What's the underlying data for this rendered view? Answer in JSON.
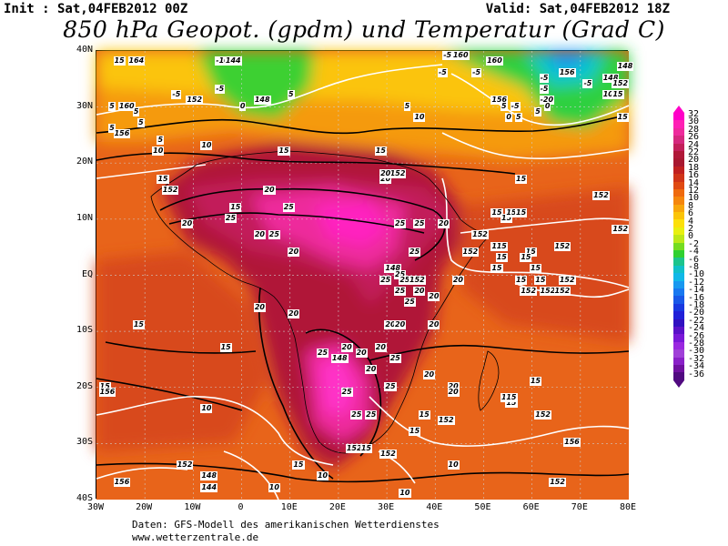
{
  "header": {
    "init": "Init : Sat,04FEB2012 00Z",
    "valid": "Valid: Sat,04FEB2012 18Z",
    "title": "850 hPa Geopot. (gpdm) und Temperatur (Grad C)"
  },
  "axes": {
    "lat_labels": [
      "40N",
      "30N",
      "20N",
      "10N",
      "EQ",
      "10S",
      "20S",
      "30S",
      "40S"
    ],
    "lon_labels": [
      "30W",
      "20W",
      "10W",
      "0",
      "10E",
      "20E",
      "30E",
      "40E",
      "50E",
      "60E",
      "70E",
      "80E"
    ]
  },
  "colorbar": {
    "values": [
      "32",
      "30",
      "28",
      "26",
      "24",
      "22",
      "20",
      "18",
      "16",
      "14",
      "12",
      "10",
      "8",
      "6",
      "4",
      "2",
      "0",
      "-2",
      "-4",
      "-6",
      "-8",
      "-10",
      "-12",
      "-14",
      "-16",
      "-18",
      "-20",
      "-22",
      "-24",
      "-26",
      "-28",
      "-30",
      "-32",
      "-34",
      "-36"
    ],
    "colors": [
      "#ff00c8",
      "#ff20b4",
      "#ee2a9c",
      "#d5287e",
      "#c21f5a",
      "#b01838",
      "#a81830",
      "#c02020",
      "#d03418",
      "#e04a12",
      "#ef6a0e",
      "#f5860c",
      "#f8a60a",
      "#fbc408",
      "#fce00a",
      "#e8f010",
      "#bce818",
      "#74dc20",
      "#30d030",
      "#1cc48c",
      "#10c0c8",
      "#10b8e8",
      "#1898f0",
      "#1878f0",
      "#1858e8",
      "#1838e0",
      "#2020d8",
      "#3010c0",
      "#5a10c8",
      "#7a18d8",
      "#9a28e0",
      "#a040d8",
      "#8a20c8",
      "#7010a0",
      "#500a80"
    ]
  },
  "map_labels": [
    {
      "lat": 38,
      "lon": -22,
      "text": "164"
    },
    {
      "lat": 38,
      "lon": -25,
      "text": "15"
    },
    {
      "lat": 38,
      "lon": -4,
      "text": "-10"
    },
    {
      "lat": 38,
      "lon": -2,
      "text": "144"
    },
    {
      "lat": 33,
      "lon": -4,
      "text": "-5"
    },
    {
      "lat": 32,
      "lon": -13,
      "text": "-5"
    },
    {
      "lat": 31,
      "lon": -10,
      "text": "152"
    },
    {
      "lat": 30,
      "lon": -24,
      "text": "160"
    },
    {
      "lat": 30,
      "lon": -26,
      "text": "5"
    },
    {
      "lat": 29,
      "lon": -21,
      "text": "5"
    },
    {
      "lat": 27,
      "lon": -20,
      "text": "5"
    },
    {
      "lat": 26,
      "lon": -26,
      "text": "5"
    },
    {
      "lat": 25,
      "lon": -25,
      "text": "156"
    },
    {
      "lat": 24,
      "lon": -16,
      "text": "5"
    },
    {
      "lat": 22,
      "lon": -17,
      "text": "10"
    },
    {
      "lat": 23,
      "lon": -7,
      "text": "10"
    },
    {
      "lat": 30,
      "lon": 1,
      "text": "0"
    },
    {
      "lat": 31,
      "lon": 4,
      "text": "148"
    },
    {
      "lat": 32,
      "lon": 11,
      "text": "5"
    },
    {
      "lat": 30,
      "lon": 35,
      "text": "5"
    },
    {
      "lat": 28,
      "lon": 37,
      "text": "10"
    },
    {
      "lat": 22,
      "lon": 9,
      "text": "15"
    },
    {
      "lat": 22,
      "lon": 29,
      "text": "15"
    },
    {
      "lat": 39,
      "lon": 43,
      "text": "-5"
    },
    {
      "lat": 39,
      "lon": 45,
      "text": "160"
    },
    {
      "lat": 38,
      "lon": 52,
      "text": "160"
    },
    {
      "lat": 36,
      "lon": 42,
      "text": "-5"
    },
    {
      "lat": 36,
      "lon": 49,
      "text": "-5"
    },
    {
      "lat": 31,
      "lon": 53,
      "text": "156"
    },
    {
      "lat": 30,
      "lon": 55,
      "text": "5"
    },
    {
      "lat": 30,
      "lon": 57,
      "text": "-5"
    },
    {
      "lat": 28,
      "lon": 56,
      "text": "0"
    },
    {
      "lat": 28,
      "lon": 58,
      "text": "5"
    },
    {
      "lat": 36,
      "lon": 67,
      "text": "156"
    },
    {
      "lat": 35,
      "lon": 63,
      "text": "-5"
    },
    {
      "lat": 34,
      "lon": 72,
      "text": "-5"
    },
    {
      "lat": 35,
      "lon": 76,
      "text": "148"
    },
    {
      "lat": 37,
      "lon": 79,
      "text": "148"
    },
    {
      "lat": 33,
      "lon": 63,
      "text": "-5"
    },
    {
      "lat": 31,
      "lon": 63,
      "text": "-20"
    },
    {
      "lat": 30,
      "lon": 64,
      "text": "0"
    },
    {
      "lat": 29,
      "lon": 62,
      "text": "5"
    },
    {
      "lat": 32,
      "lon": 76,
      "text": "10"
    },
    {
      "lat": 32,
      "lon": 78,
      "text": "15"
    },
    {
      "lat": 28,
      "lon": 79,
      "text": "15"
    },
    {
      "lat": 34,
      "lon": 78,
      "text": "152"
    },
    {
      "lat": 18,
      "lon": 32,
      "text": "152"
    },
    {
      "lat": 17,
      "lon": 30,
      "text": "20"
    },
    {
      "lat": 18,
      "lon": 30,
      "text": "20"
    },
    {
      "lat": 17,
      "lon": 58,
      "text": "15"
    },
    {
      "lat": 15,
      "lon": 6,
      "text": "20"
    },
    {
      "lat": 17,
      "lon": -16,
      "text": "15"
    },
    {
      "lat": 15,
      "lon": -15,
      "text": "152"
    },
    {
      "lat": 12,
      "lon": -1,
      "text": "15"
    },
    {
      "lat": 12,
      "lon": 10,
      "text": "25"
    },
    {
      "lat": 9,
      "lon": -11,
      "text": "20"
    },
    {
      "lat": 10,
      "lon": -2,
      "text": "25"
    },
    {
      "lat": 7,
      "lon": 4,
      "text": "20"
    },
    {
      "lat": 7,
      "lon": 7,
      "text": "25"
    },
    {
      "lat": 9,
      "lon": 33,
      "text": "25"
    },
    {
      "lat": 9,
      "lon": 37,
      "text": "25"
    },
    {
      "lat": 9,
      "lon": 42,
      "text": "20"
    },
    {
      "lat": 11,
      "lon": 53,
      "text": "15"
    },
    {
      "lat": 10,
      "lon": 55,
      "text": "15"
    },
    {
      "lat": 11,
      "lon": 56,
      "text": "15"
    },
    {
      "lat": 11,
      "lon": 58,
      "text": "15"
    },
    {
      "lat": 7,
      "lon": 49,
      "text": "152"
    },
    {
      "lat": 5,
      "lon": 53,
      "text": "15"
    },
    {
      "lat": 5,
      "lon": 54,
      "text": "15"
    },
    {
      "lat": 4,
      "lon": 60,
      "text": "15"
    },
    {
      "lat": 3,
      "lon": 54,
      "text": "15"
    },
    {
      "lat": 4,
      "lon": 36,
      "text": "25"
    },
    {
      "lat": 4,
      "lon": 47,
      "text": "152"
    },
    {
      "lat": 14,
      "lon": 74,
      "text": "152"
    },
    {
      "lat": 8,
      "lon": 78,
      "text": "152"
    },
    {
      "lat": 5,
      "lon": 66,
      "text": "152"
    },
    {
      "lat": 1,
      "lon": 31,
      "text": "148"
    },
    {
      "lat": 0,
      "lon": 33,
      "text": "25"
    },
    {
      "lat": -1,
      "lon": 30,
      "text": "25"
    },
    {
      "lat": -1,
      "lon": 34,
      "text": "25"
    },
    {
      "lat": -1,
      "lon": 36,
      "text": "152"
    },
    {
      "lat": -3,
      "lon": 33,
      "text": "25"
    },
    {
      "lat": -3,
      "lon": 37,
      "text": "20"
    },
    {
      "lat": -5,
      "lon": 35,
      "text": "25"
    },
    {
      "lat": -4,
      "lon": 40,
      "text": "20"
    },
    {
      "lat": -1,
      "lon": 45,
      "text": "20"
    },
    {
      "lat": -1,
      "lon": 67,
      "text": "152"
    },
    {
      "lat": -3,
      "lon": 63,
      "text": "152"
    },
    {
      "lat": -3,
      "lon": 66,
      "text": "152"
    },
    {
      "lat": -3,
      "lon": 59,
      "text": "152"
    },
    {
      "lat": -1,
      "lon": 58,
      "text": "15"
    },
    {
      "lat": -1,
      "lon": 62,
      "text": "15"
    },
    {
      "lat": 1,
      "lon": 53,
      "text": "15"
    },
    {
      "lat": 1,
      "lon": 61,
      "text": "15"
    },
    {
      "lat": 3,
      "lon": 59,
      "text": "15"
    },
    {
      "lat": 4,
      "lon": 11,
      "text": "20"
    },
    {
      "lat": -6,
      "lon": 4,
      "text": "20"
    },
    {
      "lat": -7,
      "lon": 11,
      "text": "20"
    },
    {
      "lat": -9,
      "lon": 31,
      "text": "20"
    },
    {
      "lat": -9,
      "lon": 33,
      "text": "20"
    },
    {
      "lat": -9,
      "lon": 40,
      "text": "20"
    },
    {
      "lat": -9,
      "lon": -21,
      "text": "15"
    },
    {
      "lat": -13,
      "lon": -3,
      "text": "15"
    },
    {
      "lat": -14,
      "lon": 17,
      "text": "25"
    },
    {
      "lat": -13,
      "lon": 22,
      "text": "20"
    },
    {
      "lat": -14,
      "lon": 25,
      "text": "20"
    },
    {
      "lat": -13,
      "lon": 29,
      "text": "20"
    },
    {
      "lat": -15,
      "lon": 20,
      "text": "148"
    },
    {
      "lat": -17,
      "lon": 27,
      "text": "20"
    },
    {
      "lat": -15,
      "lon": 32,
      "text": "25"
    },
    {
      "lat": -18,
      "lon": 39,
      "text": "20"
    },
    {
      "lat": -20,
      "lon": 44,
      "text": "20"
    },
    {
      "lat": -21,
      "lon": 44,
      "text": "20"
    },
    {
      "lat": -20,
      "lon": 31,
      "text": "25"
    },
    {
      "lat": -21,
      "lon": 22,
      "text": "25"
    },
    {
      "lat": -25,
      "lon": 24,
      "text": "25"
    },
    {
      "lat": -25,
      "lon": 27,
      "text": "25"
    },
    {
      "lat": -25,
      "lon": 38,
      "text": "15"
    },
    {
      "lat": -26,
      "lon": 42,
      "text": "152"
    },
    {
      "lat": -22,
      "lon": 55,
      "text": "15"
    },
    {
      "lat": -23,
      "lon": 56,
      "text": "15"
    },
    {
      "lat": -19,
      "lon": 61,
      "text": "15"
    },
    {
      "lat": -22,
      "lon": 56,
      "text": "15"
    },
    {
      "lat": -25,
      "lon": 62,
      "text": "152"
    },
    {
      "lat": -20,
      "lon": -28,
      "text": "15"
    },
    {
      "lat": -21,
      "lon": -28,
      "text": "156"
    },
    {
      "lat": -24,
      "lon": -7,
      "text": "10"
    },
    {
      "lat": -28,
      "lon": 36,
      "text": "15"
    },
    {
      "lat": -30,
      "lon": 68,
      "text": "156"
    },
    {
      "lat": -31,
      "lon": 23,
      "text": "152"
    },
    {
      "lat": -31,
      "lon": 26,
      "text": "15"
    },
    {
      "lat": -32,
      "lon": 30,
      "text": "152"
    },
    {
      "lat": -34,
      "lon": -12,
      "text": "152"
    },
    {
      "lat": -34,
      "lon": 12,
      "text": "15"
    },
    {
      "lat": -37,
      "lon": -25,
      "text": "156"
    },
    {
      "lat": -36,
      "lon": -7,
      "text": "148"
    },
    {
      "lat": -38,
      "lon": -7,
      "text": "144"
    },
    {
      "lat": -38,
      "lon": 7,
      "text": "10"
    },
    {
      "lat": -39,
      "lon": 34,
      "text": "10"
    },
    {
      "lat": -34,
      "lon": 44,
      "text": "10"
    },
    {
      "lat": -37,
      "lon": 65,
      "text": "152"
    },
    {
      "lat": -36,
      "lon": 17,
      "text": "10"
    }
  ],
  "footer": {
    "line1": "Daten: GFS-Modell des amerikanischen Wetterdienstes",
    "line2": "www.wetterzentrale.de"
  }
}
